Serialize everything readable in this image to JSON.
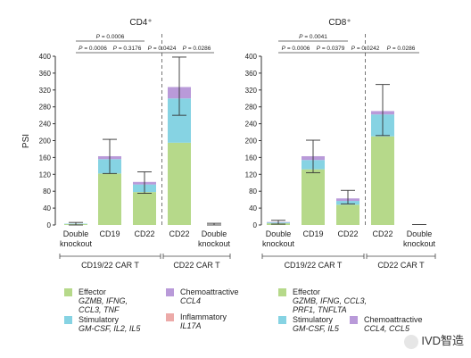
{
  "chart_data": [
    {
      "type": "bar",
      "title": "CD4⁺",
      "ylabel": "PSI",
      "ylim": [
        0,
        400
      ],
      "yticks": [
        0,
        40,
        80,
        120,
        160,
        200,
        240,
        280,
        320,
        360,
        400
      ],
      "categories": [
        "Double knockout",
        "CD19",
        "CD22",
        "CD22",
        "Double knockout"
      ],
      "category_lines": [
        [
          "Double",
          "knockout"
        ],
        [
          "CD19"
        ],
        [
          "CD22"
        ],
        [
          "CD22"
        ],
        [
          "Double",
          "knockout"
        ]
      ],
      "series": [
        {
          "name": "Effector",
          "values": [
            2,
            122,
            78,
            195,
            0
          ]
        },
        {
          "name": "Stimulatory",
          "values": [
            1,
            34,
            18,
            105,
            0
          ]
        },
        {
          "name": "Chemoattractive",
          "values": [
            0,
            7,
            6,
            27,
            0
          ]
        }
      ],
      "error_bars": [
        [
          0,
          6
        ],
        [
          122,
          203
        ],
        [
          75,
          126
        ],
        [
          260,
          398
        ],
        [
          0,
          4
        ]
      ],
      "group_labels": [
        {
          "label": "CD19/22 CAR T",
          "from": 0,
          "to": 2
        },
        {
          "label": "CD22 CAR T",
          "from": 3,
          "to": 4
        }
      ],
      "annotations": [
        {
          "text": "P = 0.0006",
          "from": 0,
          "to": 2,
          "level": 0
        },
        {
          "text": "P = 0.0006",
          "from": 0,
          "to": 1,
          "level": 1
        },
        {
          "text": "P = 0.3176",
          "from": 1,
          "to": 2,
          "level": 1
        },
        {
          "text": "P = 0.0424",
          "from": 2,
          "to": 3,
          "level": 1
        },
        {
          "text": "P = 0.0286",
          "from": 3,
          "to": 4,
          "level": 1
        }
      ]
    },
    {
      "type": "bar",
      "title": "CD8⁺",
      "ylabel": "",
      "ylim": [
        0,
        400
      ],
      "yticks": [
        0,
        40,
        80,
        120,
        160,
        200,
        240,
        280,
        320,
        360,
        400
      ],
      "categories": [
        "Double knockout",
        "CD19",
        "CD22",
        "CD22",
        "Double knockout"
      ],
      "category_lines": [
        [
          "Double",
          "knockout"
        ],
        [
          "CD19"
        ],
        [
          "CD22"
        ],
        [
          "CD22"
        ],
        [
          "Double",
          "knockout"
        ]
      ],
      "series": [
        {
          "name": "Effector",
          "values": [
            4,
            132,
            48,
            210,
            0
          ]
        },
        {
          "name": "Stimulatory",
          "values": [
            2,
            22,
            9,
            52,
            0
          ]
        },
        {
          "name": "Chemoattractive",
          "values": [
            1,
            9,
            6,
            8,
            0
          ]
        }
      ],
      "error_bars": [
        [
          2,
          11
        ],
        [
          124,
          201
        ],
        [
          50,
          82
        ],
        [
          212,
          333
        ],
        [
          0,
          0
        ]
      ],
      "group_labels": [
        {
          "label": "CD19/22 CAR T",
          "from": 0,
          "to": 2
        },
        {
          "label": "CD22 CAR T",
          "from": 3,
          "to": 4
        }
      ],
      "annotations": [
        {
          "text": "P = 0.0041",
          "from": 0,
          "to": 2,
          "level": 0
        },
        {
          "text": "P = 0.0006",
          "from": 0,
          "to": 1,
          "level": 1
        },
        {
          "text": "P = 0.0379",
          "from": 1,
          "to": 2,
          "level": 1
        },
        {
          "text": "P = 0.0242",
          "from": 2,
          "to": 3,
          "level": 1
        },
        {
          "text": "P = 0.0286",
          "from": 3,
          "to": 4,
          "level": 1
        }
      ]
    }
  ],
  "colors": {
    "effector": "#b6d98a",
    "stimulatory": "#86d3e3",
    "chemoattractive": "#b99ad9",
    "inflammatory": "#ecaaa8"
  },
  "legend": {
    "left": [
      {
        "label": "Effector",
        "genes": "GZMB, IFNG,",
        "genes2": "CCL3, TNF",
        "color_key": "effector"
      },
      {
        "label": "Stimulatory",
        "genes": "GM-CSF, IL2, IL5",
        "genes2": "",
        "color_key": "stimulatory"
      },
      {
        "label": "Chemoattractive",
        "genes": "CCL4",
        "genes2": "",
        "color_key": "chemoattractive"
      },
      {
        "label": "Inflammatory",
        "genes": "IL17A",
        "genes2": "",
        "color_key": "inflammatory"
      }
    ],
    "right": [
      {
        "label": "Effector",
        "genes": "GZMB, IFNG, CCL3,",
        "genes2": "PRF1, TNFLTA",
        "color_key": "effector"
      },
      {
        "label": "Stimulatory",
        "genes": "GM-CSF, IL5",
        "genes2": "",
        "color_key": "stimulatory"
      },
      {
        "label": "Chemoattractive",
        "genes": "CCL4, CCL5",
        "genes2": "",
        "color_key": "chemoattractive"
      }
    ]
  },
  "watermark": "IVD智造"
}
